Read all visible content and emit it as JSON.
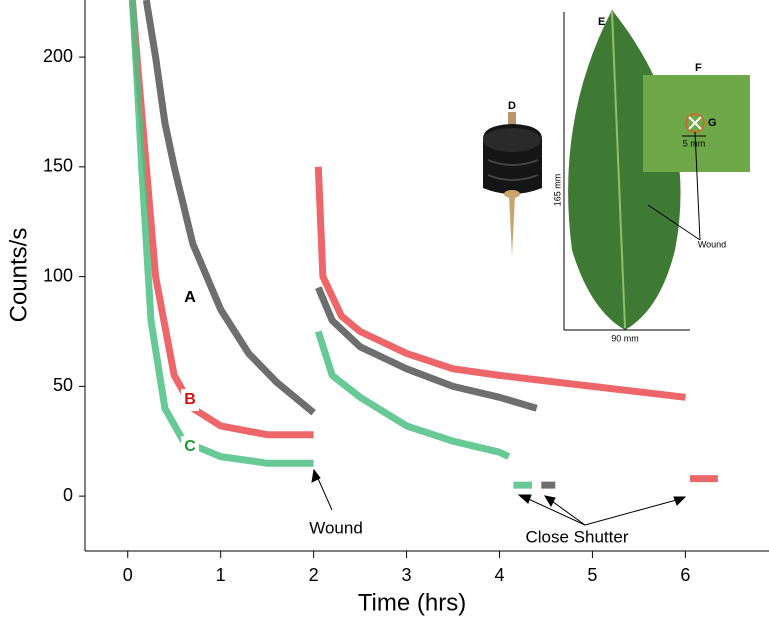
{
  "chart_data": {
    "type": "line",
    "xlabel": "Time (hrs)",
    "ylabel": "Counts/s",
    "xlim": [
      -0.46,
      6.9
    ],
    "ylim": [
      -25,
      226
    ],
    "xticks": [
      0,
      1,
      2,
      3,
      4,
      5,
      6
    ],
    "yticks": [
      0,
      50,
      100,
      150,
      200
    ],
    "series": [
      {
        "name": "A",
        "color": "#555555",
        "x": [
          0.2,
          0.3,
          0.4,
          0.5,
          0.7,
          1.0,
          1.3,
          1.6,
          2.0,
          null,
          2.05,
          2.2,
          2.5,
          3.0,
          3.5,
          4.0,
          4.4,
          null,
          4.45,
          4.6
        ],
        "values": [
          226,
          200,
          170,
          150,
          115,
          85,
          65,
          52,
          38,
          null,
          95,
          80,
          68,
          58,
          50,
          45,
          40,
          null,
          5,
          5
        ]
      },
      {
        "name": "B",
        "color": "#ea4b4f",
        "x": [
          0.05,
          0.1,
          0.2,
          0.3,
          0.5,
          0.7,
          1.0,
          1.5,
          2.0,
          null,
          2.05,
          2.1,
          2.3,
          2.5,
          3.0,
          3.5,
          4.0,
          5.0,
          6.0,
          null,
          6.05,
          6.35
        ],
        "values": [
          226,
          200,
          150,
          100,
          55,
          40,
          32,
          28,
          28,
          null,
          150,
          100,
          82,
          75,
          65,
          58,
          55,
          50,
          45,
          null,
          8,
          8
        ]
      },
      {
        "name": "C",
        "color": "#4cbf82",
        "x": [
          0.05,
          0.1,
          0.15,
          0.25,
          0.4,
          0.6,
          1.0,
          1.5,
          2.0,
          null,
          2.05,
          2.2,
          2.5,
          3.0,
          3.5,
          4.0,
          4.1,
          null,
          4.15,
          4.35
        ],
        "values": [
          226,
          190,
          150,
          80,
          40,
          25,
          18,
          15,
          15,
          null,
          75,
          55,
          45,
          32,
          25,
          20,
          18,
          null,
          5,
          5
        ]
      }
    ],
    "annotations": [
      "Wound",
      "Close Shutter"
    ],
    "inset": {
      "labels": [
        "D",
        "E",
        "F",
        "G"
      ],
      "height": "165 mm",
      "width": "90 mm",
      "scale": "5 mm",
      "wound": "Wound"
    }
  }
}
